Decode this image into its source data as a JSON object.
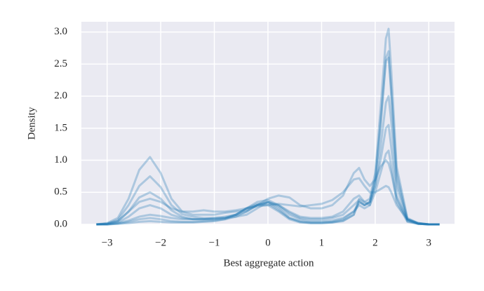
{
  "chart_data": {
    "type": "line",
    "xlabel": "Best aggregate action",
    "ylabel": "Density",
    "xlim": [
      -3.48,
      3.48
    ],
    "ylim": [
      0,
      3.16
    ],
    "xticks": [
      {
        "value": -3,
        "label": "−3"
      },
      {
        "value": -2,
        "label": "−2"
      },
      {
        "value": -1,
        "label": "−1"
      },
      0,
      1,
      2,
      3
    ],
    "yticks": [
      {
        "value": 0,
        "label": "0.0"
      },
      {
        "value": 0.5,
        "label": "0.5"
      },
      {
        "value": 1,
        "label": "1.0"
      },
      {
        "value": 1.5,
        "label": "1.5"
      },
      {
        "value": 2,
        "label": "2.0"
      },
      {
        "value": 2.5,
        "label": "2.5"
      },
      {
        "value": 3,
        "label": "3.0"
      }
    ],
    "grid": true,
    "line_opacity": 0.3,
    "x": [
      -3.2,
      -3,
      -2.8,
      -2.6,
      -2.4,
      -2.2,
      -2,
      -1.8,
      -1.6,
      -1.4,
      -1.2,
      -1,
      -0.8,
      -0.6,
      -0.4,
      -0.2,
      0,
      0.2,
      0.4,
      0.6,
      0.8,
      1,
      1.2,
      1.4,
      1.6,
      1.7,
      1.8,
      1.9,
      2,
      2.1,
      2.2,
      2.25,
      2.3,
      2.4,
      2.6,
      2.8,
      3,
      3.2
    ],
    "series": [
      {
        "color": "#1f77b4",
        "values": [
          0,
          0.02,
          0.1,
          0.4,
          0.85,
          1.05,
          0.8,
          0.4,
          0.2,
          0.15,
          0.15,
          0.15,
          0.18,
          0.2,
          0.22,
          0.3,
          0.4,
          0.45,
          0.42,
          0.3,
          0.25,
          0.25,
          0.3,
          0.45,
          0.8,
          0.88,
          0.7,
          0.6,
          0.7,
          0.9,
          1.0,
          0.95,
          0.8,
          0.4,
          0.08,
          0.02,
          0,
          0
        ]
      },
      {
        "color": "#1f77b4",
        "values": [
          0,
          0.01,
          0.07,
          0.3,
          0.6,
          0.75,
          0.58,
          0.3,
          0.16,
          0.12,
          0.1,
          0.1,
          0.1,
          0.12,
          0.15,
          0.25,
          0.35,
          0.3,
          0.2,
          0.12,
          0.1,
          0.1,
          0.12,
          0.2,
          0.4,
          0.45,
          0.35,
          0.4,
          0.8,
          1.8,
          2.9,
          3.05,
          2.4,
          0.9,
          0.1,
          0.02,
          0,
          0
        ]
      },
      {
        "color": "#1f77b4",
        "values": [
          0,
          0.01,
          0.05,
          0.2,
          0.42,
          0.5,
          0.4,
          0.22,
          0.12,
          0.08,
          0.08,
          0.08,
          0.1,
          0.15,
          0.25,
          0.35,
          0.38,
          0.3,
          0.18,
          0.1,
          0.08,
          0.08,
          0.1,
          0.15,
          0.3,
          0.38,
          0.3,
          0.35,
          0.7,
          1.5,
          2.6,
          2.7,
          2.0,
          0.7,
          0.08,
          0.01,
          0,
          0
        ]
      },
      {
        "color": "#1f77b4",
        "values": [
          0,
          0,
          0.03,
          0.12,
          0.25,
          0.3,
          0.25,
          0.15,
          0.1,
          0.08,
          0.08,
          0.1,
          0.12,
          0.15,
          0.2,
          0.3,
          0.35,
          0.28,
          0.15,
          0.08,
          0.05,
          0.05,
          0.06,
          0.1,
          0.2,
          0.3,
          0.25,
          0.3,
          0.6,
          1.2,
          1.9,
          2.0,
          1.6,
          0.6,
          0.06,
          0.01,
          0,
          0
        ]
      },
      {
        "color": "#1f77b4",
        "values": [
          0,
          0,
          0.02,
          0.06,
          0.12,
          0.15,
          0.13,
          0.1,
          0.08,
          0.08,
          0.08,
          0.08,
          0.1,
          0.15,
          0.25,
          0.32,
          0.33,
          0.22,
          0.1,
          0.05,
          0.03,
          0.03,
          0.04,
          0.08,
          0.2,
          0.35,
          0.3,
          0.35,
          0.6,
          1.0,
          1.5,
          1.55,
          1.2,
          0.45,
          0.05,
          0.01,
          0,
          0
        ]
      },
      {
        "color": "#1f77b4",
        "values": [
          0,
          0,
          0.01,
          0.02,
          0.04,
          0.05,
          0.04,
          0.03,
          0.03,
          0.03,
          0.04,
          0.05,
          0.08,
          0.15,
          0.25,
          0.3,
          0.3,
          0.2,
          0.08,
          0.03,
          0.02,
          0.02,
          0.03,
          0.06,
          0.15,
          0.4,
          0.35,
          0.3,
          0.5,
          0.8,
          1.1,
          1.15,
          0.9,
          0.35,
          0.04,
          0.01,
          0,
          0
        ]
      },
      {
        "color": "#1f77b4",
        "values": [
          0,
          0.01,
          0.05,
          0.2,
          0.35,
          0.4,
          0.35,
          0.25,
          0.2,
          0.2,
          0.22,
          0.2,
          0.2,
          0.22,
          0.25,
          0.28,
          0.3,
          0.32,
          0.3,
          0.28,
          0.3,
          0.32,
          0.38,
          0.5,
          0.7,
          0.72,
          0.6,
          0.5,
          0.5,
          0.55,
          0.6,
          0.58,
          0.5,
          0.3,
          0.08,
          0.02,
          0,
          0
        ]
      },
      {
        "color": "#1f77b4",
        "values": [
          0,
          0,
          0.01,
          0.04,
          0.08,
          0.1,
          0.08,
          0.05,
          0.04,
          0.04,
          0.05,
          0.06,
          0.08,
          0.12,
          0.2,
          0.3,
          0.35,
          0.25,
          0.1,
          0.04,
          0.02,
          0.02,
          0.03,
          0.05,
          0.15,
          0.35,
          0.3,
          0.35,
          0.7,
          1.6,
          2.55,
          2.6,
          2.1,
          0.8,
          0.08,
          0.01,
          0,
          0
        ]
      }
    ]
  }
}
